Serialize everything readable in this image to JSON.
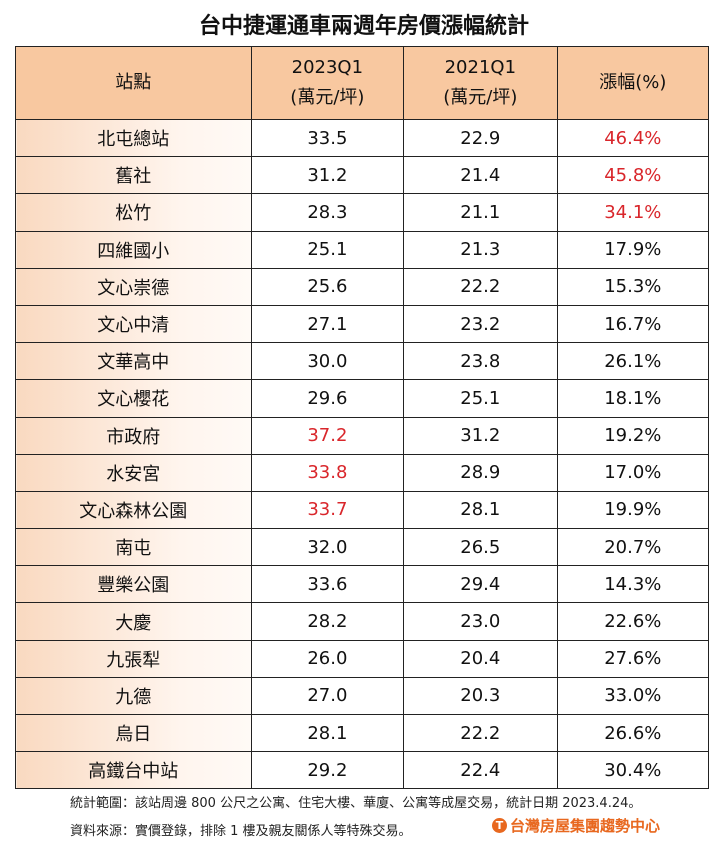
{
  "chart_data": {
    "type": "table",
    "title": "台中捷運通車兩週年房價漲幅統計",
    "columns": [
      "站點",
      "2023Q1",
      "2021Q1",
      "漲幅(%)"
    ],
    "column_units": [
      "",
      "(萬元/坪)",
      "(萬元/坪)",
      ""
    ],
    "rows": [
      {
        "station": "北屯總站",
        "q2023": "33.5",
        "q2021": "22.9",
        "growth": "46.4%",
        "red2023": false,
        "redGrowth": true
      },
      {
        "station": "舊社",
        "q2023": "31.2",
        "q2021": "21.4",
        "growth": "45.8%",
        "red2023": false,
        "redGrowth": true
      },
      {
        "station": "松竹",
        "q2023": "28.3",
        "q2021": "21.1",
        "growth": "34.1%",
        "red2023": false,
        "redGrowth": true
      },
      {
        "station": "四維國小",
        "q2023": "25.1",
        "q2021": "21.3",
        "growth": "17.9%",
        "red2023": false,
        "redGrowth": false
      },
      {
        "station": "文心崇德",
        "q2023": "25.6",
        "q2021": "22.2",
        "growth": "15.3%",
        "red2023": false,
        "redGrowth": false
      },
      {
        "station": "文心中清",
        "q2023": "27.1",
        "q2021": "23.2",
        "growth": "16.7%",
        "red2023": false,
        "redGrowth": false
      },
      {
        "station": "文華高中",
        "q2023": "30.0",
        "q2021": "23.8",
        "growth": "26.1%",
        "red2023": false,
        "redGrowth": false
      },
      {
        "station": "文心櫻花",
        "q2023": "29.6",
        "q2021": "25.1",
        "growth": "18.1%",
        "red2023": false,
        "redGrowth": false
      },
      {
        "station": "市政府",
        "q2023": "37.2",
        "q2021": "31.2",
        "growth": "19.2%",
        "red2023": true,
        "redGrowth": false
      },
      {
        "station": "水安宮",
        "q2023": "33.8",
        "q2021": "28.9",
        "growth": "17.0%",
        "red2023": true,
        "redGrowth": false
      },
      {
        "station": "文心森林公園",
        "q2023": "33.7",
        "q2021": "28.1",
        "growth": "19.9%",
        "red2023": true,
        "redGrowth": false
      },
      {
        "station": "南屯",
        "q2023": "32.0",
        "q2021": "26.5",
        "growth": "20.7%",
        "red2023": false,
        "redGrowth": false
      },
      {
        "station": "豐樂公園",
        "q2023": "33.6",
        "q2021": "29.4",
        "growth": "14.3%",
        "red2023": false,
        "redGrowth": false
      },
      {
        "station": "大慶",
        "q2023": "28.2",
        "q2021": "23.0",
        "growth": "22.6%",
        "red2023": false,
        "redGrowth": false
      },
      {
        "station": "九張犁",
        "q2023": "26.0",
        "q2021": "20.4",
        "growth": "27.6%",
        "red2023": false,
        "redGrowth": false
      },
      {
        "station": "九德",
        "q2023": "27.0",
        "q2021": "20.3",
        "growth": "33.0%",
        "red2023": false,
        "redGrowth": false
      },
      {
        "station": "烏日",
        "q2023": "28.1",
        "q2021": "22.2",
        "growth": "26.6%",
        "red2023": false,
        "redGrowth": false
      },
      {
        "station": "高鐵台中站",
        "q2023": "29.2",
        "q2021": "22.4",
        "growth": "30.4%",
        "red2023": false,
        "redGrowth": false
      }
    ]
  },
  "colors": {
    "header": "#f8c8a0",
    "highlight": "#d9262b",
    "logo": "#e8681f"
  },
  "footer": {
    "scope": "統計範圍：該站周邊 800 公尺之公寓、住宅大樓、華廈、公寓等成屋交易，統計日期 2023.4.24。",
    "source": "資料來源：實價登錄，排除 1 樓及親友關係人等特殊交易。",
    "logo_text": "台灣房屋集團趨勢中心"
  }
}
